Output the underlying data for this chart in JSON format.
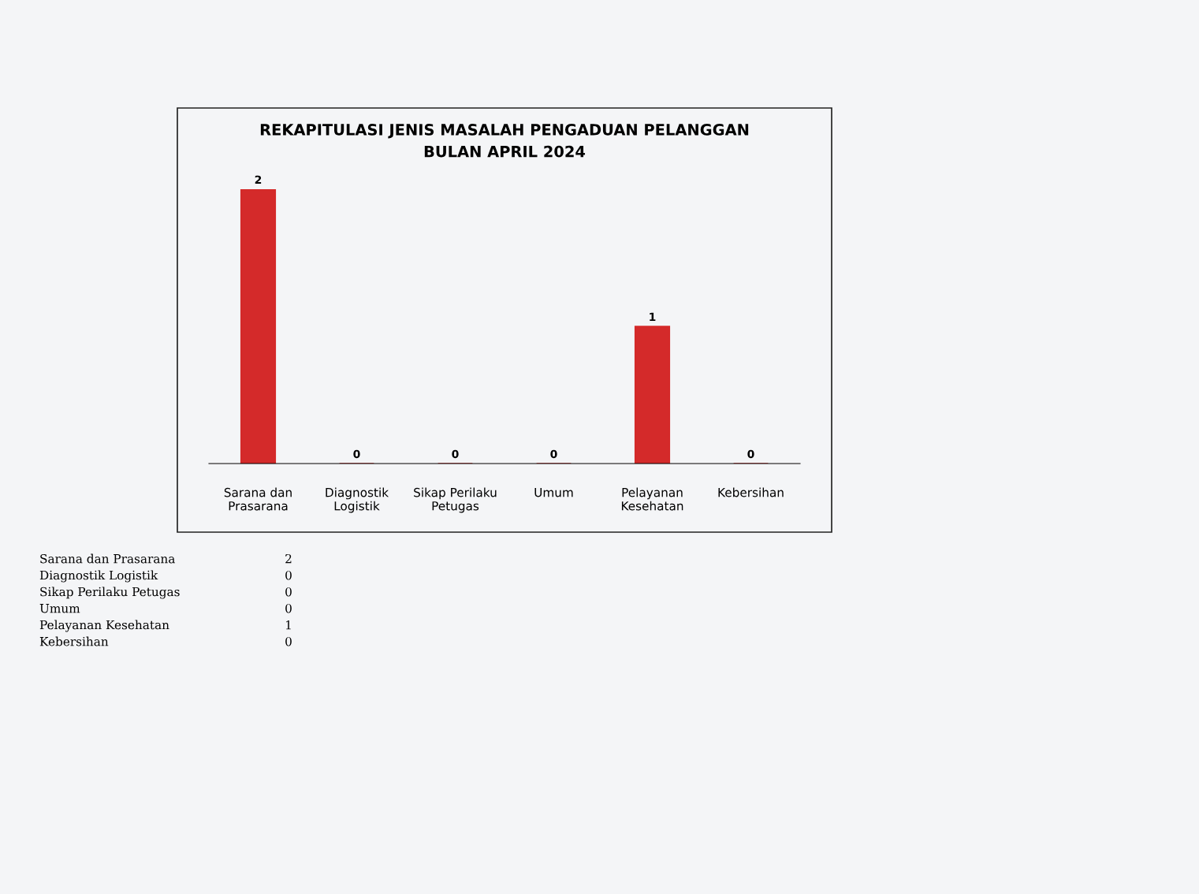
{
  "chart_data": {
    "type": "bar",
    "title": "REKAPITULASI JENIS MASALAH PENGADUAN PELANGGAN\nBULAN APRIL 2024",
    "categories": [
      "Sarana dan\nPrasarana",
      "Diagnostik\nLogistik",
      "Sikap Perilaku\nPetugas",
      "Umum",
      "Pelayanan\nKesehatan",
      "Kebersihan"
    ],
    "values": [
      2,
      0,
      0,
      0,
      1,
      0
    ],
    "color": "#d42a2a",
    "ylim": [
      0,
      2
    ],
    "tick_labels": "x",
    "data_labels": true,
    "grid": false,
    "legend": false,
    "annotations": [
      "2",
      "0",
      "0",
      "0",
      "1",
      "0"
    ]
  }
}
